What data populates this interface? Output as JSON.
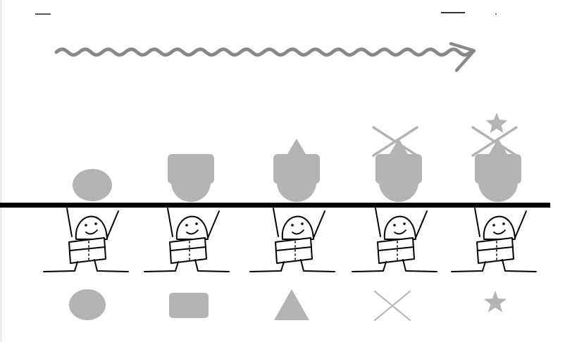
{
  "diagram": {
    "description_free": true,
    "arrow": {
      "style": "wavy",
      "direction": "right",
      "color": "#808080"
    },
    "divider": {
      "color": "#000000"
    },
    "shape_color": "#b3b3b3",
    "columns": [
      {
        "id": "circle",
        "top_stack": [
          "circle"
        ],
        "legend_shape": "circle"
      },
      {
        "id": "rect",
        "top_stack": [
          "circle",
          "rectangle"
        ],
        "legend_shape": "rectangle"
      },
      {
        "id": "triangle",
        "top_stack": [
          "circle",
          "rectangle",
          "triangle"
        ],
        "legend_shape": "triangle"
      },
      {
        "id": "cross",
        "top_stack": [
          "circle",
          "rectangle",
          "triangle",
          "cross"
        ],
        "legend_shape": "cross"
      },
      {
        "id": "star",
        "top_stack": [
          "circle",
          "rectangle",
          "triangle",
          "cross",
          "star"
        ],
        "legend_shape": "star"
      }
    ]
  }
}
